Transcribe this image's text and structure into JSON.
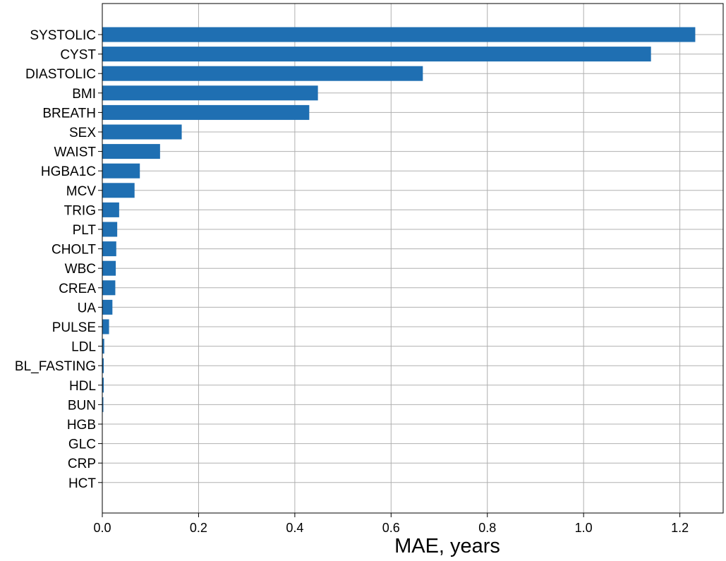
{
  "chart_data": {
    "type": "bar",
    "orientation": "horizontal",
    "categories": [
      "SYSTOLIC",
      "CYST",
      "DIASTOLIC",
      "BMI",
      "BREATH",
      "SEX",
      "WAIST",
      "HGBA1C",
      "MCV",
      "TRIG",
      "PLT",
      "CHOLT",
      "WBC",
      "CREA",
      "UA",
      "PULSE",
      "LDL",
      "BL_FASTING",
      "HDL",
      "BUN",
      "HGB",
      "GLC",
      "CRP",
      "HCT"
    ],
    "values": [
      1.232,
      1.14,
      0.666,
      0.448,
      0.43,
      0.165,
      0.12,
      0.078,
      0.067,
      0.035,
      0.031,
      0.029,
      0.028,
      0.027,
      0.021,
      0.014,
      0.004,
      0.003,
      0.003,
      0.002,
      0.0,
      0.0,
      0.0,
      0.0
    ],
    "xlabel": "MAE, years",
    "ylabel": "",
    "xlim": [
      0,
      1.29
    ],
    "xticks": [
      0.0,
      0.2,
      0.4,
      0.6,
      0.8,
      1.0,
      1.2
    ],
    "xtick_labels": [
      "0.0",
      "0.2",
      "0.4",
      "0.6",
      "0.8",
      "1.0",
      "1.2"
    ],
    "grid": true,
    "bar_color": "#1f6fb2",
    "grid_color": "#b0b0b0"
  }
}
